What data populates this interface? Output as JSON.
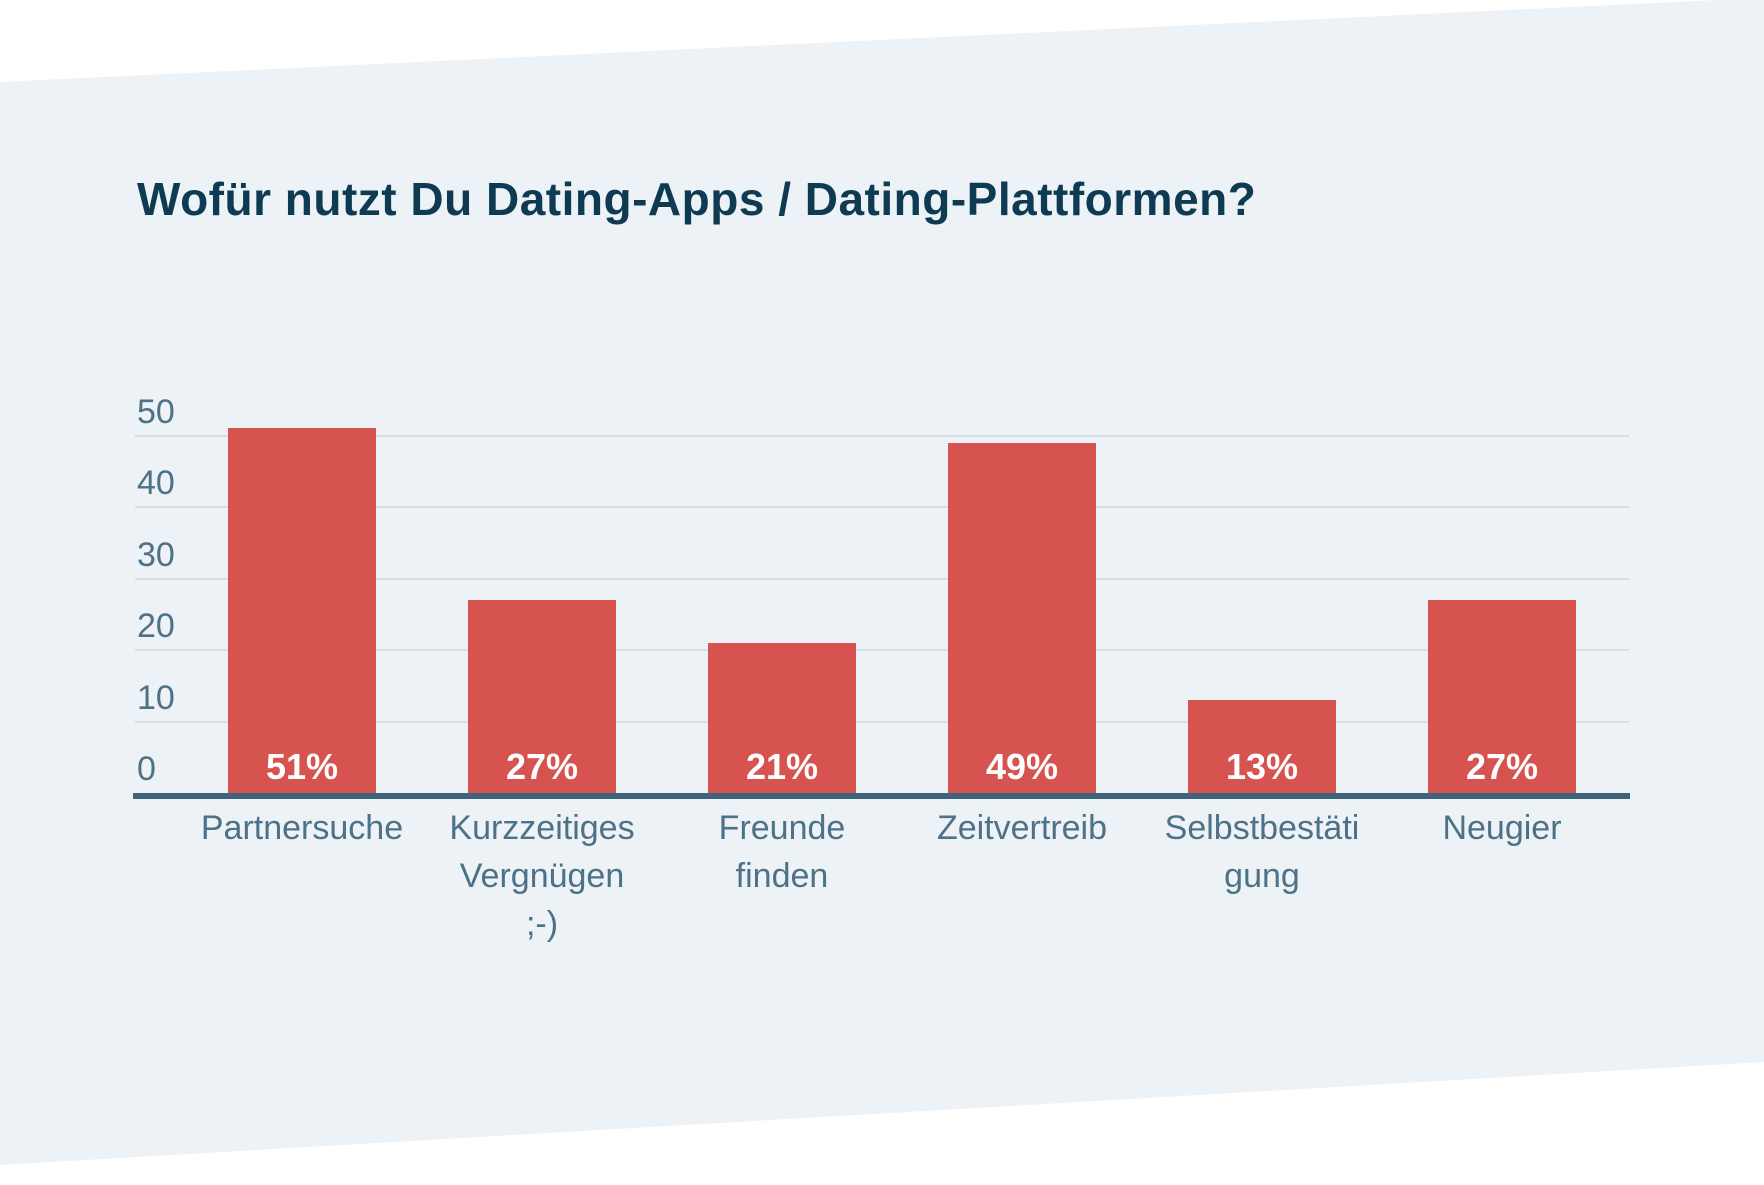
{
  "title": "Wofür nutzt Du Dating-Apps / Dating-Plattformen?",
  "colors": {
    "page_background": "#ffffff",
    "panel_background": "#edf2f6",
    "bar": "#d7534f",
    "axis_line": "#3f6378",
    "gridline": "#d5dde5",
    "tick_text": "#4d7187",
    "title_text": "#0e3a52",
    "value_text": "#ffffff"
  },
  "chart_data": {
    "type": "bar",
    "title": "Wofür nutzt Du Dating-Apps / Dating-Plattformen?",
    "categories": [
      "Partnersuche",
      "Kurzzeitiges\nVergnügen\n;-)",
      "Freunde\nfinden",
      "Zeitvertreib",
      "Selbstbestäti\ngung",
      "Neugier"
    ],
    "values": [
      51,
      27,
      21,
      49,
      13,
      27
    ],
    "value_labels": [
      "51%",
      "27%",
      "21%",
      "49%",
      "13%",
      "27%"
    ],
    "y_ticks": [
      0,
      10,
      20,
      30,
      40,
      50
    ],
    "ylim": [
      0,
      52
    ],
    "xlabel": "",
    "ylabel": "",
    "grid": true,
    "legend": "none"
  }
}
